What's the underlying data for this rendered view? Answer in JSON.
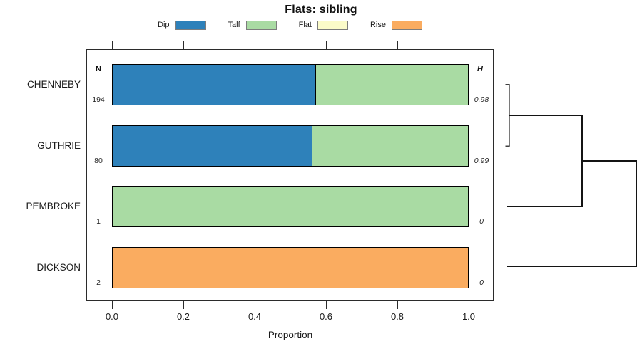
{
  "page": {
    "title": "Flats: sibling"
  },
  "chart_data": {
    "type": "bar",
    "orientation": "horizontal",
    "stacked": true,
    "title": "Flats: sibling",
    "xlabel": "Proportion",
    "xlim": [
      0,
      1
    ],
    "xticks": [
      "0.0",
      "0.2",
      "0.4",
      "0.6",
      "0.8",
      "1.0"
    ],
    "grid": false,
    "legend_position": "top",
    "categories": [
      "CHENNEBY",
      "GUTHRIE",
      "PEMBROKE",
      "DICKSON"
    ],
    "series": [
      {
        "name": "Dip",
        "color": "#2E81BA",
        "values": [
          0.57,
          0.56,
          0,
          0
        ]
      },
      {
        "name": "Talf",
        "color": "#A9DBA3",
        "values": [
          0.43,
          0.44,
          1,
          0
        ]
      },
      {
        "name": "Flat",
        "color": "#FBFBC9",
        "values": [
          0,
          0,
          0,
          0
        ]
      },
      {
        "name": "Rise",
        "color": "#FAAC60",
        "values": [
          0,
          0,
          0,
          1
        ]
      }
    ],
    "n_header": "N",
    "h_header": "H",
    "n_values": [
      "194",
      "80",
      "1",
      "2"
    ],
    "h_values": [
      "0.98",
      "0.99",
      "0",
      "0"
    ],
    "dendrogram": {
      "position": "right",
      "merges": [
        {
          "clusters": [
            "CHENNEBY",
            "GUTHRIE"
          ],
          "relative_height": "low"
        },
        {
          "clusters": [
            "CHENNEBY+GUTHRIE",
            "PEMBROKE"
          ],
          "relative_height": "medium"
        },
        {
          "clusters": [
            "CHENNEBY+GUTHRIE+PEMBROKE",
            "DICKSON"
          ],
          "relative_height": "high"
        }
      ]
    },
    "colors": {
      "bar_border": "#000000",
      "box_border": "#2b2b2b",
      "dendrogram_line": "#141414",
      "bracket_line": "#7a7a7a"
    }
  }
}
